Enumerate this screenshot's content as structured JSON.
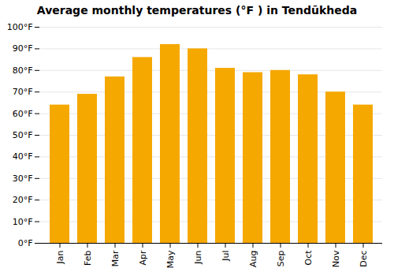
{
  "chart_data": {
    "type": "bar",
    "title": "Average monthly temperatures (°F ) in Tendūkheda",
    "categories": [
      "Jan",
      "Feb",
      "Mar",
      "Apr",
      "May",
      "Jun",
      "Jul",
      "Aug",
      "Sep",
      "Oct",
      "Nov",
      "Dec"
    ],
    "values": [
      64,
      69,
      77,
      86,
      92,
      90,
      81,
      79,
      80,
      78,
      70,
      64
    ],
    "color": "#F5A800",
    "ylim": [
      0,
      100
    ],
    "yticks": [
      {
        "value": 0,
        "label": "0°F"
      },
      {
        "value": 10,
        "label": "10°F"
      },
      {
        "value": 20,
        "label": "20°F"
      },
      {
        "value": 30,
        "label": "30°F"
      },
      {
        "value": 40,
        "label": "40°F"
      },
      {
        "value": 50,
        "label": "50°F"
      },
      {
        "value": 60,
        "label": "60°F"
      },
      {
        "value": 70,
        "label": "70°F"
      },
      {
        "value": 80,
        "label": "80°F"
      },
      {
        "value": 90,
        "label": "90°F"
      },
      {
        "value": 100,
        "label": "100°F"
      }
    ],
    "grid": true
  }
}
